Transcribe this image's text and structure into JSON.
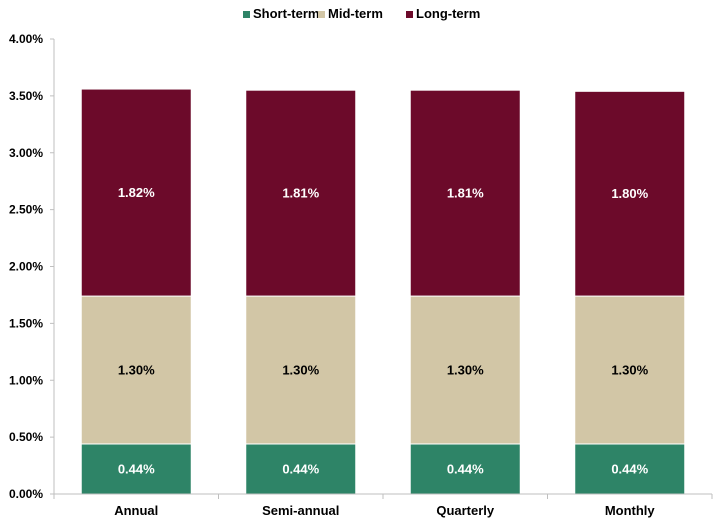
{
  "chart_data": {
    "type": "bar",
    "stacked": true,
    "title": "",
    "xlabel": "",
    "ylabel": "",
    "categories": [
      "Annual",
      "Semi-annual",
      "Quarterly",
      "Monthly"
    ],
    "series": [
      {
        "name": "Short-term",
        "color": "#2e8467",
        "label_color": "#ffffff",
        "values": [
          0.44,
          0.44,
          0.44,
          0.44
        ],
        "labels": [
          "0.44%",
          "0.44%",
          "0.44%",
          "0.44%"
        ]
      },
      {
        "name": "Mid-term",
        "color": "#d2c6a6",
        "label_color": "#000000",
        "values": [
          1.3,
          1.3,
          1.3,
          1.3
        ],
        "labels": [
          "1.30%",
          "1.30%",
          "1.30%",
          "1.30%"
        ]
      },
      {
        "name": "Long-term",
        "color": "#6c0a2a",
        "label_color": "#ffffff",
        "values": [
          1.82,
          1.81,
          1.81,
          1.8
        ],
        "labels": [
          "1.82%",
          "1.81%",
          "1.81%",
          "1.80%"
        ]
      }
    ],
    "ylim": [
      0,
      4.0
    ],
    "yticks": [
      0,
      0.5,
      1.0,
      1.5,
      2.0,
      2.5,
      3.0,
      3.5,
      4.0
    ],
    "ytick_labels": [
      "0.00%",
      "0.50%",
      "1.00%",
      "1.50%",
      "2.00%",
      "2.50%",
      "3.00%",
      "3.50%",
      "4.00%"
    ],
    "grid": false,
    "legend_position": "top-center"
  }
}
